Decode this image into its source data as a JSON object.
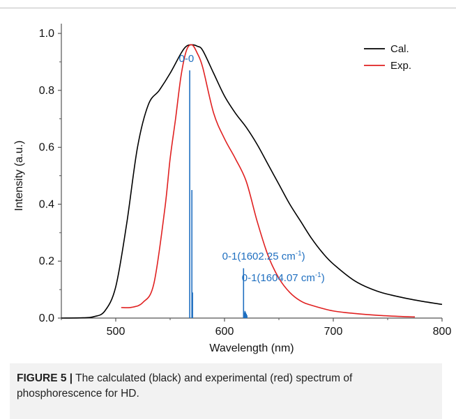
{
  "chart_data": {
    "type": "line",
    "xlabel": "Wavelength (nm)",
    "ylabel": "Intensity (a.u.)",
    "xlim": [
      450,
      800
    ],
    "ylim": [
      0.0,
      1.0
    ],
    "xticks": [
      500,
      600,
      700,
      800
    ],
    "xtick_labels": [
      "500",
      "600",
      "700",
      "800"
    ],
    "yticks": [
      0.0,
      0.2,
      0.4,
      0.6,
      0.8,
      1.0
    ],
    "ytick_labels": [
      "0.0",
      "0.2",
      "0.4",
      "0.6",
      "0.8",
      "1.0"
    ],
    "grid": false,
    "legend_position": "top-right",
    "series": [
      {
        "name": "Cal.",
        "color": "#000000",
        "points": [
          [
            450,
            0.0
          ],
          [
            470,
            0.001
          ],
          [
            480,
            0.005
          ],
          [
            490,
            0.025
          ],
          [
            500,
            0.11
          ],
          [
            510,
            0.33
          ],
          [
            520,
            0.6
          ],
          [
            530,
            0.75
          ],
          [
            540,
            0.8
          ],
          [
            550,
            0.86
          ],
          [
            560,
            0.93
          ],
          [
            565,
            0.955
          ],
          [
            570,
            0.96
          ],
          [
            575,
            0.955
          ],
          [
            580,
            0.94
          ],
          [
            590,
            0.86
          ],
          [
            600,
            0.78
          ],
          [
            610,
            0.72
          ],
          [
            620,
            0.67
          ],
          [
            630,
            0.61
          ],
          [
            640,
            0.54
          ],
          [
            650,
            0.47
          ],
          [
            660,
            0.4
          ],
          [
            670,
            0.34
          ],
          [
            680,
            0.28
          ],
          [
            690,
            0.23
          ],
          [
            700,
            0.19
          ],
          [
            720,
            0.13
          ],
          [
            740,
            0.095
          ],
          [
            760,
            0.075
          ],
          [
            780,
            0.06
          ],
          [
            800,
            0.048
          ]
        ]
      },
      {
        "name": "Exp.",
        "color": "#e02020",
        "points": [
          [
            505,
            0.037
          ],
          [
            515,
            0.038
          ],
          [
            525,
            0.055
          ],
          [
            535,
            0.12
          ],
          [
            545,
            0.38
          ],
          [
            550,
            0.56
          ],
          [
            555,
            0.7
          ],
          [
            560,
            0.85
          ],
          [
            565,
            0.94
          ],
          [
            570,
            0.96
          ],
          [
            575,
            0.93
          ],
          [
            580,
            0.88
          ],
          [
            590,
            0.72
          ],
          [
            600,
            0.63
          ],
          [
            610,
            0.56
          ],
          [
            620,
            0.48
          ],
          [
            630,
            0.34
          ],
          [
            640,
            0.22
          ],
          [
            650,
            0.14
          ],
          [
            660,
            0.09
          ],
          [
            670,
            0.06
          ],
          [
            680,
            0.045
          ],
          [
            700,
            0.025
          ],
          [
            720,
            0.016
          ],
          [
            740,
            0.01
          ],
          [
            760,
            0.006
          ],
          [
            775,
            0.004
          ]
        ]
      }
    ],
    "sticks": {
      "color": "#1f6fc0",
      "lines": [
        [
          568,
          0.87
        ],
        [
          570,
          0.45
        ],
        [
          570.6,
          0.09
        ],
        [
          617.5,
          0.175
        ],
        [
          618.2,
          0.02
        ],
        [
          618.8,
          0.025
        ],
        [
          619.4,
          0.02
        ],
        [
          620,
          0.015
        ],
        [
          620.6,
          0.01
        ]
      ]
    },
    "annotations": [
      {
        "id": "annot-0-0",
        "text": "0-0",
        "sup": "",
        "suffix": "",
        "x": 565,
        "y": 0.9
      },
      {
        "id": "annot-1602",
        "text": "0-1(1602.25 cm",
        "sup": "-1",
        "suffix": ")",
        "x": 636,
        "y": 0.205
      },
      {
        "id": "annot-1604",
        "text": "0-1(1604.07 cm",
        "sup": "-1",
        "suffix": ")",
        "x": 654,
        "y": 0.13
      }
    ]
  },
  "caption": {
    "label": "FIGURE 5 |",
    "text": " The calculated (black) and experimental (red) spectrum of phosphorescence for HD."
  }
}
